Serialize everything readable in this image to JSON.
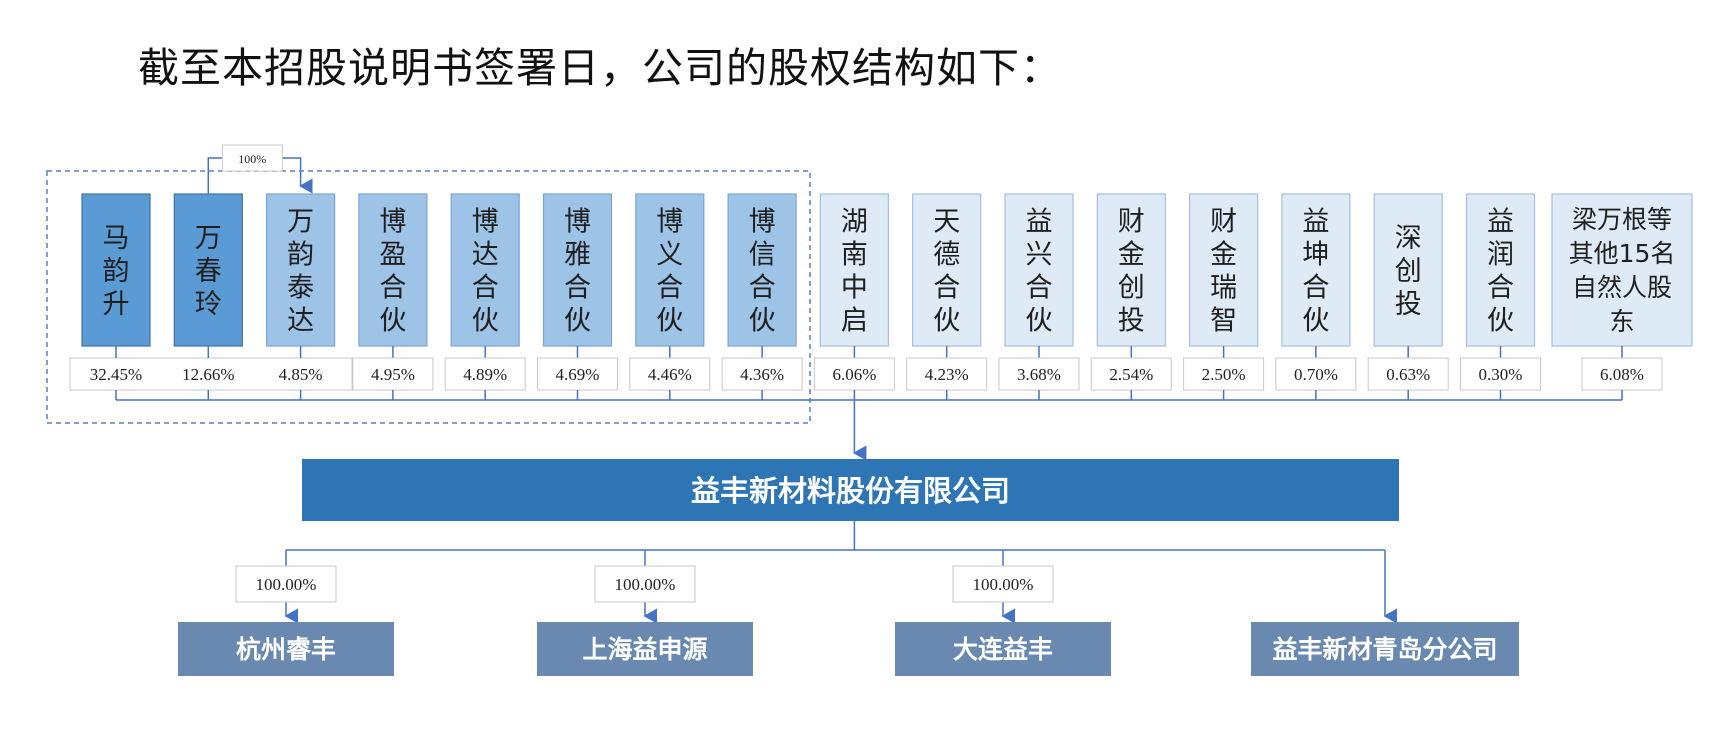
{
  "intro_text": "截至本招股说明书签署日，公司的股权结构如下：",
  "control_label": "100%",
  "shareholders": [
    {
      "name": "马韵升",
      "pct": "32.45%",
      "style": "dark"
    },
    {
      "name": "万春玲",
      "pct": "12.66%",
      "style": "dark"
    },
    {
      "name": "万韵泰达",
      "pct": "4.85%",
      "style": "mid"
    },
    {
      "name": "博盈合伙",
      "pct": "4.95%",
      "style": "mid"
    },
    {
      "name": "博达合伙",
      "pct": "4.89%",
      "style": "mid"
    },
    {
      "name": "博雅合伙",
      "pct": "4.69%",
      "style": "mid"
    },
    {
      "name": "博义合伙",
      "pct": "4.46%",
      "style": "mid"
    },
    {
      "name": "博信合伙",
      "pct": "4.36%",
      "style": "mid"
    },
    {
      "name": "湖南中启",
      "pct": "6.06%",
      "style": "light"
    },
    {
      "name": "天德合伙",
      "pct": "4.23%",
      "style": "light"
    },
    {
      "name": "益兴合伙",
      "pct": "3.68%",
      "style": "light"
    },
    {
      "name": "财金创投",
      "pct": "2.54%",
      "style": "light"
    },
    {
      "name": "财金瑞智",
      "pct": "2.50%",
      "style": "light"
    },
    {
      "name": "益坤合伙",
      "pct": "0.70%",
      "style": "light"
    },
    {
      "name": "深创投",
      "pct": "0.63%",
      "style": "light"
    },
    {
      "name": "益润合伙",
      "pct": "0.30%",
      "style": "light"
    },
    {
      "name": "梁万根等其他15名自然人股东",
      "pct": "6.08%",
      "style": "light"
    }
  ],
  "company": "益丰新材料股份有限公司",
  "subsidiaries": [
    {
      "name": "杭州睿丰",
      "pct": "100.00%"
    },
    {
      "name": "上海益申源",
      "pct": "100.00%"
    },
    {
      "name": "大连益丰",
      "pct": "100.00%"
    },
    {
      "name": "益丰新材青岛分公司",
      "pct": ""
    }
  ],
  "colors": {
    "dark": "#5b9bd5",
    "mid": "#9dc3e6",
    "light": "#deebf7",
    "company": "#2e75b6",
    "subsidiary": "#6a89b0",
    "line": "#4472c4"
  }
}
